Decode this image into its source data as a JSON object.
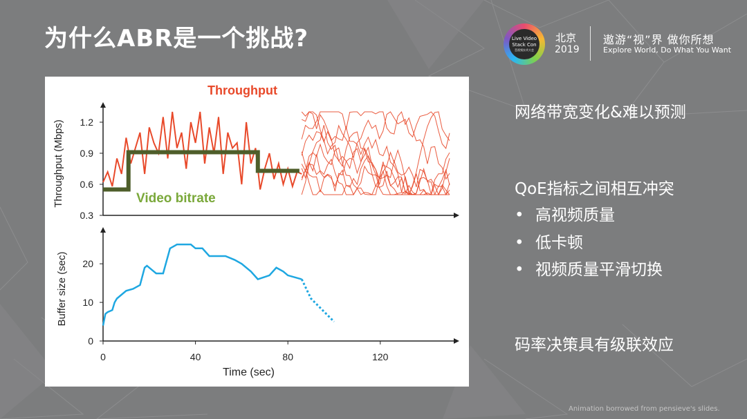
{
  "slide": {
    "title": "为什么ABR是一个挑战?",
    "footnote": "Animation borrowed from pensieve's slides."
  },
  "header": {
    "logo_lines": [
      "Live Video",
      "Stack Con",
      "音视频技术大会"
    ],
    "city": "北京",
    "year": "2019",
    "slogan_zh": "遨游“视”界 做你所想",
    "slogan_en": "Explore World, Do What You Want"
  },
  "points": {
    "p1": "网络带宽变化&难以预测",
    "p2": "QoE指标之间相互冲突",
    "subs": [
      "高视频质量",
      "低卡顿",
      "视频质量平滑切换"
    ],
    "p3": "码率决策具有级联效应",
    "bullet_char": "•"
  },
  "colors": {
    "throughput": "#e8492a",
    "bitrate": "#4e5e2a",
    "bitrate_label": "#7aa83a",
    "buffer": "#1ea7e1",
    "axis": "#222222"
  },
  "chart_data": [
    {
      "type": "line",
      "ylabel": "Throughput (Mbps)",
      "ylim": [
        0.3,
        1.3
      ],
      "yticks": [
        "0.3",
        "0.6",
        "0.9",
        "1.2"
      ],
      "xlim": [
        0,
        150
      ],
      "annotations": [
        "Throughput",
        "Video bitrate"
      ],
      "series": [
        {
          "name": "Throughput",
          "x": [
            0,
            2,
            4,
            6,
            8,
            10,
            12,
            14,
            16,
            18,
            20,
            22,
            24,
            26,
            28,
            30,
            32,
            34,
            36,
            38,
            40,
            42,
            44,
            46,
            48,
            50,
            52,
            54,
            56,
            58,
            60,
            62,
            64,
            66,
            68,
            70,
            72,
            74,
            76,
            78,
            80,
            82,
            84,
            86
          ],
          "values": [
            0.62,
            0.72,
            0.58,
            0.85,
            0.7,
            1.05,
            0.8,
            0.95,
            1.1,
            0.7,
            1.15,
            1.0,
            0.9,
            1.25,
            0.85,
            1.3,
            0.95,
            1.1,
            0.75,
            1.2,
            1.0,
            1.3,
            0.8,
            1.15,
            0.9,
            1.25,
            0.7,
            1.1,
            0.95,
            1.0,
            0.6,
            1.2,
            0.8,
            0.95,
            0.55,
            0.75,
            0.9,
            0.65,
            0.8,
            0.6,
            0.75,
            0.58,
            0.72,
            0.7
          ]
        },
        {
          "name": "Video bitrate",
          "x": [
            0,
            11,
            11,
            67,
            67,
            85
          ],
          "values": [
            0.55,
            0.55,
            0.91,
            0.91,
            0.73,
            0.73
          ]
        },
        {
          "name": "Future throughput traces",
          "note_values": "multiple overlapping random traces between x=86 and x=150",
          "range": [
            0.55,
            1.25
          ]
        }
      ]
    },
    {
      "type": "line",
      "xlabel": "Time (sec)",
      "ylabel": "Buffer size (sec)",
      "xlim": [
        0,
        150
      ],
      "ylim": [
        0,
        27
      ],
      "xticks": [
        "0",
        "40",
        "80",
        "120"
      ],
      "yticks": [
        "0",
        "10",
        "20"
      ],
      "series": [
        {
          "name": "Buffer",
          "x": [
            0,
            1,
            2,
            4,
            5,
            6,
            8,
            10,
            13,
            16,
            18,
            19,
            21,
            23,
            26,
            29,
            32,
            34,
            38,
            40,
            43,
            46,
            49,
            53,
            57,
            60,
            64,
            67,
            72,
            75,
            78,
            80,
            86
          ],
          "values": [
            4,
            7,
            7.5,
            8,
            10,
            11,
            12,
            13,
            13.5,
            14.5,
            19,
            19.5,
            18.5,
            17.5,
            17.5,
            24,
            25,
            25,
            25,
            24,
            24,
            22,
            22,
            22,
            21,
            20,
            18,
            16,
            17,
            19,
            18,
            17,
            16
          ]
        },
        {
          "name": "Buffer projection",
          "x": [
            86,
            90,
            95,
            100
          ],
          "values": [
            16,
            11,
            8,
            5
          ]
        }
      ]
    }
  ]
}
